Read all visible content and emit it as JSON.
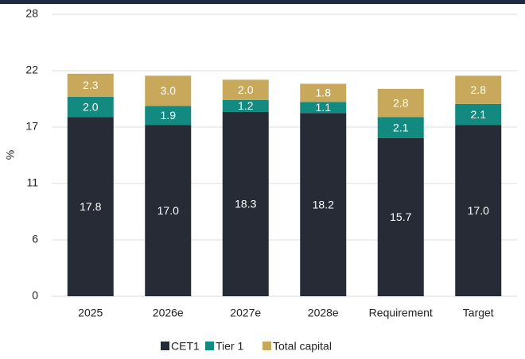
{
  "chart_data": {
    "type": "stacked_bar",
    "y_label": "%",
    "categories": [
      "2025",
      "2026e",
      "2027e",
      "2028e",
      "Requirement",
      "Target"
    ],
    "series": [
      {
        "name": "CET1",
        "color": "#262b36",
        "values": [
          17.8,
          17.0,
          18.3,
          18.2,
          15.7,
          17.0
        ],
        "value_labels": [
          "17.8",
          "17.0",
          "18.3",
          "18.2",
          "15.7",
          "17.0"
        ]
      },
      {
        "name": "Tier 1",
        "color": "#128a80",
        "values": [
          2.0,
          1.9,
          1.2,
          1.1,
          2.1,
          2.1
        ],
        "value_labels": [
          "2.0",
          "1.9",
          "1.2",
          "1.1",
          "2.1",
          "2.1"
        ]
      },
      {
        "name": "Total capital",
        "color": "#c8a95c",
        "values": [
          2.3,
          3.0,
          2.0,
          1.8,
          2.8,
          2.8
        ],
        "value_labels": [
          "2.3",
          "3.0",
          "2.0",
          "1.8",
          "2.8",
          "2.8"
        ]
      }
    ],
    "ylim": [
      0,
      28
    ],
    "yticks": [
      0,
      {
        "value": 5.6,
        "label": "6"
      },
      {
        "value": 11.2,
        "label": "11"
      },
      {
        "value": 16.8,
        "label": "17"
      },
      {
        "value": 22.4,
        "label": "22"
      },
      28
    ],
    "grid": true,
    "legend": "bottom"
  }
}
